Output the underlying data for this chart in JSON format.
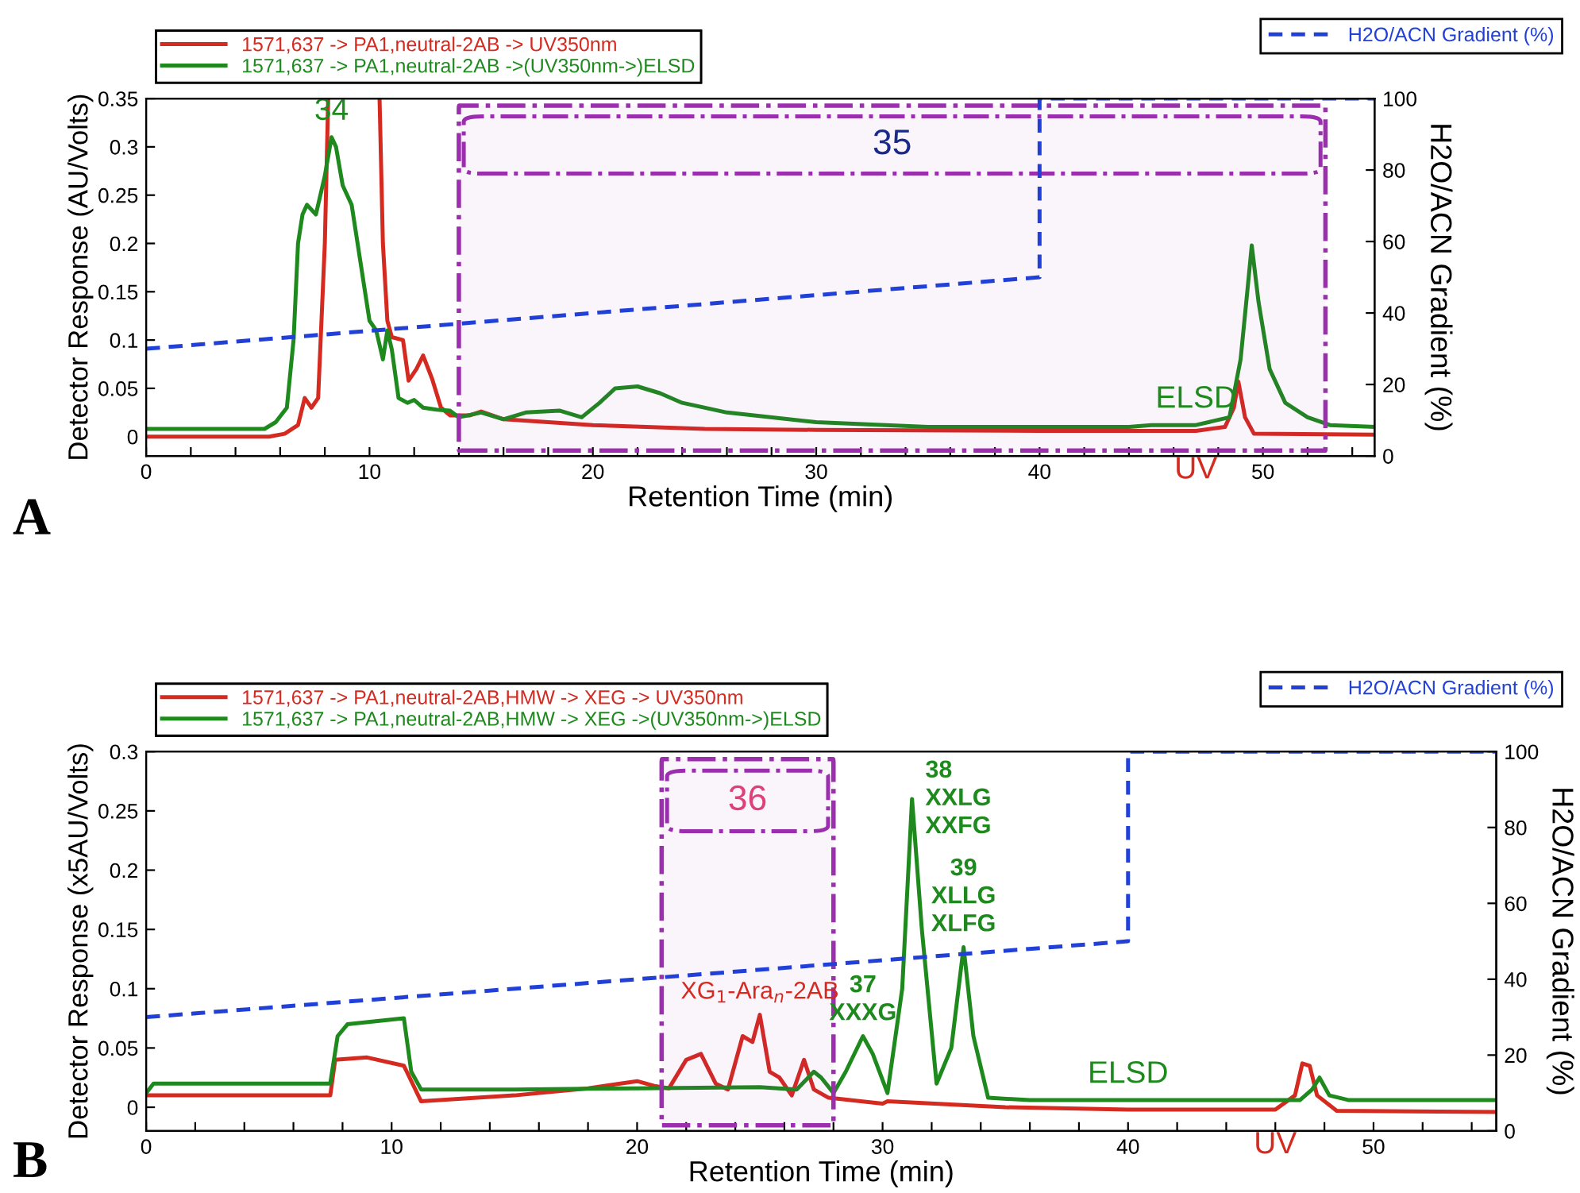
{
  "chart_data": [
    {
      "type": "line",
      "xlabel": "Retention Time (min)",
      "ylabel": "Detector Response (AU/Volts)",
      "y2label": "H2O/ACN Gradient (%)",
      "legend": "top",
      "xlim": [
        0,
        55
      ],
      "xticks": [
        0,
        {
          "value": 2,
          "label": null
        },
        {
          "value": 4,
          "label": null
        },
        {
          "value": 6,
          "label": null
        },
        {
          "value": 8,
          "label": null
        },
        10,
        {
          "value": 12,
          "label": null
        },
        {
          "value": 14,
          "label": null
        },
        {
          "value": 16,
          "label": null
        },
        {
          "value": 18,
          "label": null
        },
        20,
        {
          "value": 22,
          "label": null
        },
        {
          "value": 24,
          "label": null
        },
        {
          "value": 26,
          "label": null
        },
        {
          "value": 28,
          "label": null
        },
        30,
        {
          "value": 32,
          "label": null
        },
        {
          "value": 34,
          "label": null
        },
        {
          "value": 36,
          "label": null
        },
        {
          "value": 38,
          "label": null
        },
        40,
        {
          "value": 42,
          "label": null
        },
        {
          "value": 44,
          "label": null
        },
        {
          "value": 46,
          "label": null
        },
        {
          "value": 48,
          "label": null
        },
        50,
        {
          "value": 52,
          "label": null
        },
        {
          "value": 54,
          "label": null
        }
      ],
      "ylim": [
        -0.02,
        0.35
      ],
      "yticks": [
        0,
        0.05,
        0.1,
        0.15,
        0.2,
        0.25,
        0.3,
        0.35
      ],
      "y2lim": [
        0,
        100
      ],
      "y2ticks": [
        0,
        20,
        40,
        60,
        80,
        100
      ],
      "series": [
        {
          "name": "1571,637 -> PA1,neutral-2AB -> UV350nm",
          "color": "#d42a20",
          "line_style": "solid",
          "x": [
            0,
            5.5,
            6.2,
            6.8,
            7.1,
            7.4,
            7.7,
            8.0,
            8.15,
            9.3,
            10.45,
            10.6,
            10.8,
            11.0,
            11.5,
            11.75,
            12.1,
            12.4,
            12.8,
            13.2,
            13.6,
            14.5,
            15,
            16,
            20,
            25,
            30,
            40,
            47,
            48.3,
            48.7,
            48.9,
            49.2,
            49.6,
            55
          ],
          "values": [
            0,
            0,
            0.003,
            0.012,
            0.04,
            0.03,
            0.04,
            0.2,
            0.35,
            null,
            0.35,
            0.2,
            0.12,
            0.103,
            0.1,
            0.058,
            0.07,
            0.084,
            0.06,
            0.03,
            0.022,
            0.022,
            0.026,
            0.018,
            0.012,
            0.008,
            0.007,
            0.006,
            0.006,
            0.01,
            0.03,
            0.057,
            0.02,
            0.003,
            0.002
          ]
        },
        {
          "name": "1571,637 -> PA1,neutral-2AB ->(UV350nm->)ELSD",
          "color": "#1e8a1e",
          "line_style": "solid",
          "x": [
            0,
            5.3,
            5.8,
            6.3,
            6.6,
            6.8,
            7.0,
            7.2,
            7.6,
            8.0,
            8.3,
            8.5,
            8.8,
            9.2,
            9.6,
            10.0,
            10.3,
            10.6,
            10.8,
            11.0,
            11.3,
            11.7,
            12.0,
            12.4,
            13.0,
            13.6,
            14.0,
            15,
            16,
            17,
            18.5,
            19.5,
            20.3,
            21,
            22,
            23,
            24,
            26,
            30,
            35,
            40,
            44,
            45,
            47,
            48.5,
            49.0,
            49.3,
            49.5,
            49.8,
            50.3,
            51,
            52,
            53,
            55
          ],
          "values": [
            0.008,
            0.008,
            0.015,
            0.03,
            0.1,
            0.2,
            0.23,
            0.24,
            0.23,
            0.27,
            0.31,
            0.3,
            0.26,
            0.24,
            0.18,
            0.12,
            0.11,
            0.08,
            0.11,
            0.09,
            0.04,
            0.035,
            0.038,
            0.03,
            0.028,
            0.027,
            0.02,
            0.025,
            0.018,
            0.025,
            0.027,
            0.02,
            0.035,
            0.05,
            0.052,
            0.045,
            0.035,
            0.025,
            0.015,
            0.01,
            0.01,
            0.01,
            0.012,
            0.012,
            0.02,
            0.08,
            0.15,
            0.198,
            0.14,
            0.07,
            0.035,
            0.02,
            0.012,
            0.01
          ]
        },
        {
          "name": "H2O/ACN Gradient (%)",
          "color": "#2040d8",
          "axis": "y2",
          "line_style": "dashed",
          "x": [
            0,
            40,
            40,
            55
          ],
          "values": [
            30,
            50,
            100,
            100
          ]
        }
      ],
      "bands": [
        {
          "axis": "x",
          "from": 14,
          "to": 52.8,
          "label": "35",
          "color": "#9b2fae"
        }
      ],
      "annotations": [
        "A",
        {
          "text": "34",
          "x": 8.3,
          "y": 0.31
        },
        {
          "text": "ELSD",
          "x": 47,
          "y": 0.012
        },
        {
          "text": "UV",
          "x": 47,
          "y": 0.006
        }
      ]
    },
    {
      "type": "line",
      "xlabel": "Retention Time (min)",
      "ylabel": "Detector Response (x5AU/Volts)",
      "y2label": "H2O/ACN Gradient (%)",
      "legend": "top",
      "xlim": [
        0,
        55
      ],
      "xticks": [
        0,
        {
          "value": 2,
          "label": null
        },
        {
          "value": 4,
          "label": null
        },
        {
          "value": 6,
          "label": null
        },
        {
          "value": 8,
          "label": null
        },
        10,
        {
          "value": 12,
          "label": null
        },
        {
          "value": 14,
          "label": null
        },
        {
          "value": 16,
          "label": null
        },
        {
          "value": 18,
          "label": null
        },
        20,
        {
          "value": 22,
          "label": null
        },
        {
          "value": 24,
          "label": null
        },
        {
          "value": 26,
          "label": null
        },
        {
          "value": 28,
          "label": null
        },
        30,
        {
          "value": 32,
          "label": null
        },
        {
          "value": 34,
          "label": null
        },
        {
          "value": 36,
          "label": null
        },
        {
          "value": 38,
          "label": null
        },
        40,
        {
          "value": 42,
          "label": null
        },
        {
          "value": 44,
          "label": null
        },
        {
          "value": 46,
          "label": null
        },
        {
          "value": 48,
          "label": null
        },
        50,
        {
          "value": 52,
          "label": null
        },
        {
          "value": 54,
          "label": null
        }
      ],
      "ylim": [
        -0.02,
        0.3
      ],
      "yticks": [
        0,
        0.05,
        0.1,
        0.15,
        0.2,
        0.25,
        0.3
      ],
      "y2lim": [
        0,
        100
      ],
      "y2ticks": [
        0,
        20,
        40,
        60,
        80,
        100
      ],
      "series": [
        {
          "name": "1571,637 -> PA1,neutral-2AB,HMW -> XEG -> UV350nm",
          "color": "#d42a20",
          "line_style": "solid",
          "x": [
            0,
            7.5,
            7.7,
            9,
            10.5,
            11.2,
            15,
            18,
            20,
            20.7,
            21.3,
            22,
            22.6,
            23.2,
            23.7,
            24.3,
            24.7,
            25.0,
            25.4,
            25.8,
            26.3,
            26.8,
            27.2,
            27.8,
            30,
            30.2,
            35,
            40,
            46,
            46.8,
            47.1,
            47.4,
            47.7,
            48.5,
            55
          ],
          "values": [
            0.01,
            0.01,
            0.04,
            0.042,
            0.035,
            0.005,
            0.01,
            0.016,
            0.022,
            0.018,
            0.016,
            0.04,
            0.045,
            0.02,
            0.015,
            0.06,
            0.055,
            0.078,
            0.03,
            0.025,
            0.01,
            0.04,
            0.015,
            0.008,
            0.003,
            0.005,
            0,
            -0.002,
            -0.002,
            0.01,
            0.037,
            0.035,
            0.01,
            -0.003,
            -0.004
          ]
        },
        {
          "name": "1571,637 -> PA1,neutral-2AB,HMW -> XEG ->(UV350nm->)ELSD",
          "color": "#1e8a1e",
          "line_style": "solid",
          "x": [
            0,
            0.3,
            7.5,
            7.8,
            8.2,
            10.5,
            10.8,
            11.2,
            15,
            20,
            25,
            26.5,
            27.2,
            27.5,
            28,
            28.5,
            29.2,
            29.6,
            30.2,
            30.8,
            31.2,
            31.6,
            32.2,
            32.8,
            33.3,
            33.7,
            34.3,
            36,
            40,
            47,
            47.5,
            47.8,
            48.2,
            49,
            55
          ],
          "values": [
            0.012,
            0.02,
            0.02,
            0.06,
            0.07,
            0.075,
            0.03,
            0.015,
            0.015,
            0.016,
            0.017,
            0.015,
            0.03,
            0.025,
            0.012,
            0.03,
            0.06,
            0.045,
            0.012,
            0.1,
            0.26,
            0.15,
            0.02,
            0.05,
            0.135,
            0.06,
            0.008,
            0.006,
            0.006,
            0.006,
            0.015,
            0.025,
            0.01,
            0.006,
            0.006
          ]
        },
        {
          "name": "H2O/ACN Gradient (%)",
          "color": "#2040d8",
          "axis": "y2",
          "line_style": "dashed",
          "x": [
            0,
            40,
            40,
            55
          ],
          "values": [
            30,
            50,
            100,
            100
          ]
        }
      ],
      "bands": [
        {
          "axis": "x",
          "from": 21,
          "to": 28,
          "label": "36",
          "color": "#9b2fae"
        }
      ],
      "annotations": [
        "B",
        {
          "text": "XG$_{1}$-Ara$_{n}$-2AB",
          "x": 25.0,
          "y": 0.078
        },
        {
          "text": "37\nXXXG",
          "x": 29.2,
          "y": 0.06
        },
        {
          "text": "38\nXXLG\nXXFG",
          "x": 31.2,
          "y": 0.26
        },
        {
          "text": "39\nXLLG\nXLFG",
          "x": 33.3,
          "y": 0.135
        },
        {
          "text": "ELSD",
          "x": 40,
          "y": 0.006
        },
        {
          "text": "UV",
          "x": 46,
          "y": -0.002
        }
      ]
    }
  ]
}
